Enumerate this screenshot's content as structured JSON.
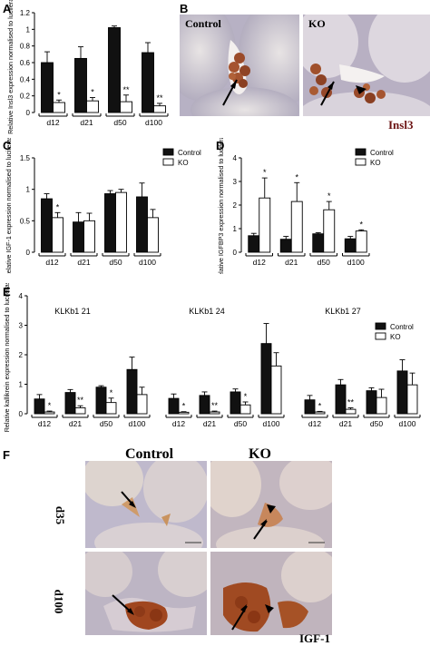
{
  "panel_letters": {
    "a": "A",
    "b": "B",
    "c": "C",
    "d": "D",
    "e": "E",
    "f": "F"
  },
  "panel_b": {
    "control": "Control",
    "ko": "KO",
    "stain": "Insl3"
  },
  "panel_f": {
    "control": "Control",
    "ko": "KO",
    "row1": "d35",
    "row2": "d100",
    "stain": "IGF-1"
  },
  "chart_data": [
    {
      "id": "A",
      "type": "bar",
      "ylabel": "Relative Insl3 expression normalised to luciferase",
      "ylim": [
        0,
        1.2
      ],
      "yticks": [
        0,
        0.2,
        0.4,
        0.6,
        0.8,
        1.0,
        1.2
      ],
      "categories": [
        "d12",
        "d21",
        "d50",
        "d100"
      ],
      "series": [
        {
          "values": [
            0.6,
            0.65,
            1.02,
            0.72
          ],
          "err": [
            0.13,
            0.14,
            0.02,
            0.12
          ],
          "color": "#111111"
        },
        {
          "values": [
            0.12,
            0.14,
            0.13,
            0.08
          ],
          "err": [
            0.03,
            0.04,
            0.08,
            0.03
          ],
          "color": "#ffffff"
        }
      ],
      "sig": [
        "*",
        "*",
        "**",
        "**"
      ]
    },
    {
      "id": "C",
      "type": "bar",
      "ylabel": "Relative IGF-1 expression normalised to luciferase",
      "ylim": [
        0,
        1.5
      ],
      "yticks": [
        0,
        0.5,
        1.0,
        1.5
      ],
      "categories": [
        "d12",
        "d21",
        "d50",
        "d100"
      ],
      "legend": [
        "Control",
        "KO"
      ],
      "series": [
        {
          "name": "Control",
          "values": [
            0.85,
            0.48,
            0.93,
            0.88
          ],
          "err": [
            0.08,
            0.15,
            0.05,
            0.22
          ],
          "color": "#111111"
        },
        {
          "name": "KO",
          "values": [
            0.55,
            0.5,
            0.95,
            0.55
          ],
          "err": [
            0.08,
            0.12,
            0.05,
            0.13
          ],
          "color": "#ffffff"
        }
      ],
      "sig": [
        "*",
        "",
        "",
        ""
      ]
    },
    {
      "id": "D",
      "type": "bar",
      "ylabel": "Relative IGFBP3 expression normalised to luciferase",
      "ylim": [
        0,
        4
      ],
      "yticks": [
        0,
        1,
        2,
        3,
        4
      ],
      "categories": [
        "d12",
        "d21",
        "d50",
        "d100"
      ],
      "legend": [
        "Control",
        "KO"
      ],
      "series": [
        {
          "name": "Control",
          "values": [
            0.7,
            0.55,
            0.78,
            0.57
          ],
          "err": [
            0.1,
            0.12,
            0.05,
            0.1
          ],
          "color": "#111111"
        },
        {
          "name": "KO",
          "values": [
            2.3,
            2.15,
            1.8,
            0.9
          ],
          "err": [
            0.85,
            0.8,
            0.35,
            0.05
          ],
          "color": "#ffffff"
        }
      ],
      "sig": [
        "*",
        "*",
        "*",
        "*"
      ]
    },
    {
      "id": "E",
      "type": "bar",
      "ylabel": "Relative kallikrein expression normalised to luciferase",
      "ylim": [
        0,
        4
      ],
      "yticks": [
        0,
        1,
        2,
        3,
        4
      ],
      "legend": [
        "Control",
        "KO"
      ],
      "groups": [
        {
          "title": "KLKb1 21",
          "categories": [
            "d12",
            "d21",
            "d50",
            "d100"
          ],
          "control": [
            0.5,
            0.72,
            0.9,
            1.5
          ],
          "control_err": [
            0.15,
            0.1,
            0.05,
            0.42
          ],
          "ko": [
            0.06,
            0.2,
            0.38,
            0.65
          ],
          "ko_err": [
            0.03,
            0.07,
            0.15,
            0.25
          ],
          "sig": [
            "*",
            "**",
            "*",
            ""
          ]
        },
        {
          "title": "KLKb1 24",
          "categories": [
            "d12",
            "d21",
            "d50",
            "d100"
          ],
          "control": [
            0.52,
            0.62,
            0.74,
            2.38
          ],
          "control_err": [
            0.15,
            0.12,
            0.1,
            0.68
          ],
          "ko": [
            0.05,
            0.06,
            0.3,
            1.62
          ],
          "ko_err": [
            0.02,
            0.03,
            0.1,
            0.45
          ],
          "sig": [
            "*",
            "**",
            "*",
            ""
          ]
        },
        {
          "title": "KLKb1 27",
          "categories": [
            "d12",
            "d21",
            "d50",
            "d100"
          ],
          "control": [
            0.47,
            0.98,
            0.78,
            1.45
          ],
          "control_err": [
            0.15,
            0.18,
            0.1,
            0.38
          ],
          "ko": [
            0.06,
            0.15,
            0.55,
            0.98
          ],
          "ko_err": [
            0.02,
            0.05,
            0.28,
            0.4
          ],
          "sig": [
            "*",
            "**",
            "",
            ""
          ]
        }
      ]
    }
  ]
}
